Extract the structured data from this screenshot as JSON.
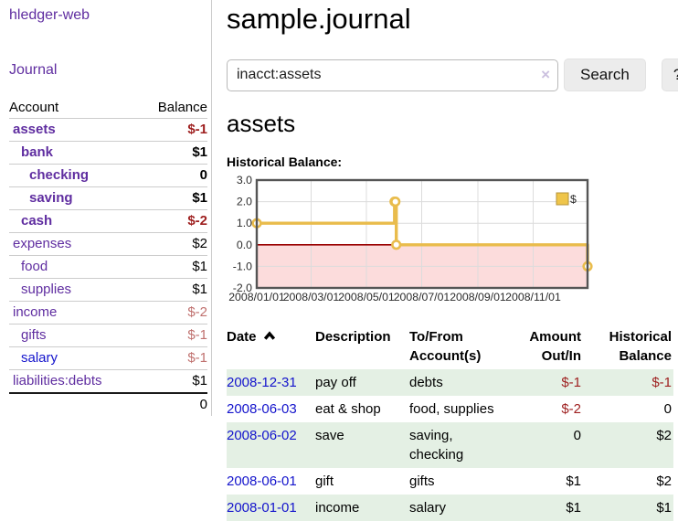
{
  "theme": {
    "purple_link": "#5f2da0",
    "blue_link": "#1414cc",
    "negative_red": "#9e1f1f",
    "negative_muted": "#c0716f",
    "row_green": "#e4f0e4",
    "button_bg": "#ececec"
  },
  "sidebar": {
    "brand": "hledger-web",
    "nav_journal": "Journal",
    "accounts_table": {
      "account_header": "Account",
      "balance_header": "Balance",
      "rows": [
        {
          "name": "assets",
          "depth": 0,
          "balance": "$-1",
          "bold": true,
          "balance_style": "neg"
        },
        {
          "name": "bank",
          "depth": 1,
          "balance": "$1",
          "bold": true,
          "balance_style": ""
        },
        {
          "name": "checking",
          "depth": 2,
          "balance": "0",
          "bold": true,
          "balance_style": ""
        },
        {
          "name": "saving",
          "depth": 2,
          "balance": "$1",
          "bold": true,
          "balance_style": ""
        },
        {
          "name": "cash",
          "depth": 1,
          "balance": "$-2",
          "bold": true,
          "balance_style": "neg"
        },
        {
          "name": "expenses",
          "depth": 0,
          "balance": "$2",
          "bold": false,
          "balance_style": ""
        },
        {
          "name": "food",
          "depth": 1,
          "balance": "$1",
          "bold": false,
          "balance_style": ""
        },
        {
          "name": "supplies",
          "depth": 1,
          "balance": "$1",
          "bold": false,
          "balance_style": ""
        },
        {
          "name": "income",
          "depth": 0,
          "balance": "$-2",
          "bold": false,
          "balance_style": "neg-muted"
        },
        {
          "name": "gifts",
          "depth": 1,
          "balance": "$-1",
          "bold": false,
          "balance_style": "neg-muted"
        },
        {
          "name": "salary",
          "depth": 1,
          "balance": "$-1",
          "bold": false,
          "balance_style": "neg-muted",
          "link_style": "blue"
        },
        {
          "name": "liabilities:debts",
          "depth": 0,
          "balance": "$1",
          "bold": false,
          "balance_style": ""
        }
      ],
      "total": "0"
    }
  },
  "main": {
    "title": "sample.journal",
    "search": {
      "value": "inacct:assets",
      "clear_icon": "×",
      "button_label": "Search",
      "help_label": "?"
    },
    "account_heading": "assets",
    "chart_heading": "Historical Balance:",
    "register": {
      "headers": [
        "Date",
        "Description",
        "To/From Account(s)",
        "Amount Out/In",
        "Historical Balance"
      ],
      "rows": [
        {
          "date": "2008-12-31",
          "description": "pay off",
          "accounts": "debts",
          "amount": "$-1",
          "balance": "$-1",
          "shaded": true
        },
        {
          "date": "2008-06-03",
          "description": "eat & shop",
          "accounts": "food, supplies",
          "amount": "$-2",
          "balance": "0",
          "shaded": false
        },
        {
          "date": "2008-06-02",
          "description": "save",
          "accounts": "saving, checking",
          "amount": "0",
          "balance": "$2",
          "shaded": true
        },
        {
          "date": "2008-06-01",
          "description": "gift",
          "accounts": "gifts",
          "amount": "$1",
          "balance": "$2",
          "shaded": false
        },
        {
          "date": "2008-01-01",
          "description": "income",
          "accounts": "salary",
          "amount": "$1",
          "balance": "$1",
          "shaded": true
        }
      ]
    }
  },
  "chart_data": {
    "type": "line",
    "step": true,
    "title": "Historical Balance",
    "series": [
      {
        "name": "$",
        "points": [
          [
            "2008-01-01",
            1
          ],
          [
            "2008-06-01",
            2
          ],
          [
            "2008-06-02",
            2
          ],
          [
            "2008-06-03",
            0
          ],
          [
            "2008-12-31",
            -1
          ]
        ]
      }
    ],
    "xlim": [
      "2008-01-01",
      "2008-12-31"
    ],
    "ylim": [
      -2,
      3
    ],
    "x_ticks": [
      "2008/01/01",
      "2008/03/01",
      "2008/05/01",
      "2008/07/01",
      "2008/09/01",
      "2008/11/01"
    ],
    "y_ticks": [
      -2,
      -1,
      0,
      1,
      2,
      3
    ],
    "legend": {
      "label": "$",
      "position": "top-right"
    },
    "grid": true,
    "colors": {
      "line": "#e9bc4c",
      "marker_fill": "#ffffff",
      "legend_fill": "#efc54a",
      "legend_border": "#b59338",
      "negative_region": "#fcdcdc",
      "zero_line": "#990000",
      "gridline": "#dcdcdc",
      "plot_border": "#555555"
    }
  }
}
